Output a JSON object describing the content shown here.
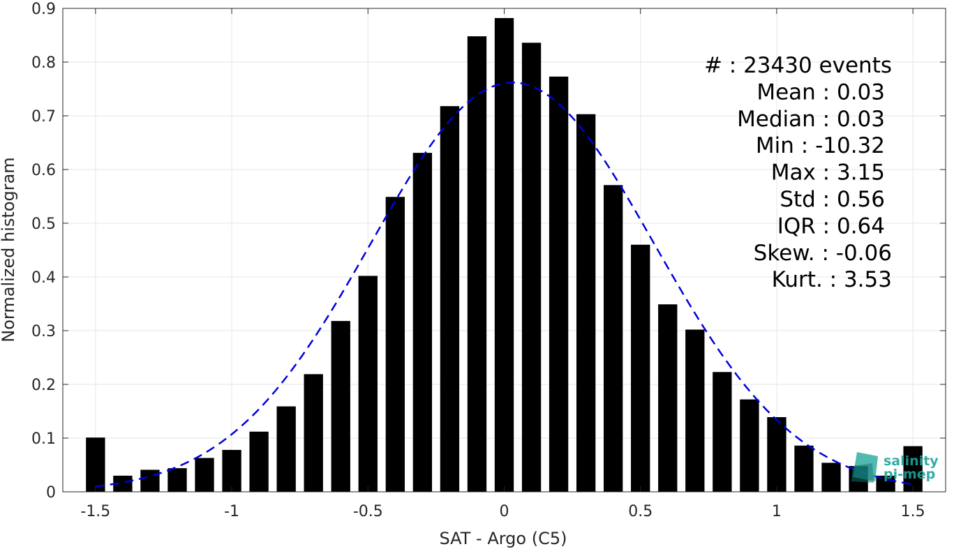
{
  "chart_data": {
    "type": "bar",
    "xlabel": "SAT - Argo (C5)",
    "ylabel": "Normalized histogram",
    "xlim": [
      -1.62,
      1.62
    ],
    "ylim": [
      0,
      0.9
    ],
    "x_ticks": [
      -1.5,
      -1,
      -0.5,
      0,
      0.5,
      1,
      1.5
    ],
    "x_tick_labels": [
      "-1.5",
      "-1",
      "-0.5",
      "0",
      "0.5",
      "1",
      "1.5"
    ],
    "y_ticks": [
      0,
      0.1,
      0.2,
      0.3,
      0.4,
      0.5,
      0.6,
      0.7,
      0.8,
      0.9
    ],
    "y_tick_labels": [
      "0",
      "0.1",
      "0.2",
      "0.3",
      "0.4",
      "0.5",
      "0.6",
      "0.7",
      "0.8",
      "0.9"
    ],
    "grid": true,
    "bar_color": "#000000",
    "bins": [
      -1.5,
      -1.4,
      -1.3,
      -1.2,
      -1.1,
      -1.0,
      -0.9,
      -0.8,
      -0.7,
      -0.6,
      -0.5,
      -0.4,
      -0.3,
      -0.2,
      -0.1,
      0.0,
      0.1,
      0.2,
      0.3,
      0.4,
      0.5,
      0.6,
      0.7,
      0.8,
      0.9,
      1.0,
      1.1,
      1.2,
      1.3,
      1.4,
      1.5
    ],
    "values": [
      0.101,
      0.03,
      0.041,
      0.044,
      0.063,
      0.078,
      0.112,
      0.159,
      0.219,
      0.318,
      0.402,
      0.549,
      0.631,
      0.718,
      0.848,
      0.882,
      0.836,
      0.773,
      0.703,
      0.571,
      0.46,
      0.349,
      0.302,
      0.223,
      0.172,
      0.139,
      0.086,
      0.054,
      0.048,
      0.03,
      0.085
    ],
    "fit_curve": {
      "style": "dashed",
      "color": "#0000dd",
      "mean": 0.03,
      "std": 0.52,
      "peak": 0.762,
      "x_range": [
        -1.5,
        1.5
      ]
    },
    "stats": [
      "#  : 23430 events",
      "Mean : 0.03",
      "Median : 0.03",
      "Min : -10.32",
      "Max : 3.15",
      "Std : 0.56",
      "IQR : 0.64",
      "Skew. : -0.06",
      "Kurt. : 3.53"
    ]
  },
  "logo": {
    "line1": "salinity",
    "line2": "pi-mep",
    "color": "#1ba59a"
  }
}
